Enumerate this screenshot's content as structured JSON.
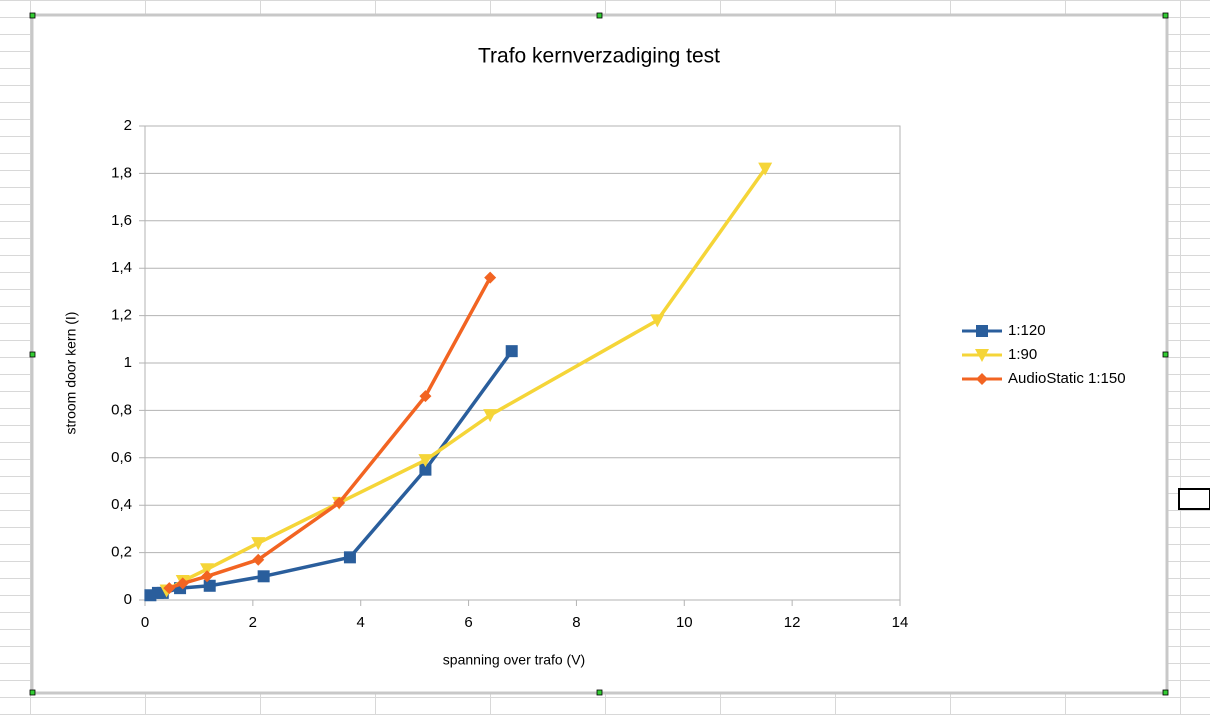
{
  "chart_data": {
    "type": "line",
    "title": "Trafo kernverzadiging test",
    "x_label": "spanning over trafo (V)",
    "y_label": "stroom door kern (I)",
    "xlim": [
      0,
      14
    ],
    "xticks": [
      0,
      2,
      4,
      6,
      8,
      10,
      12,
      14
    ],
    "ylim": [
      0,
      2
    ],
    "yticks": [
      0,
      {
        "value": 0.2,
        "label": "0,2"
      },
      {
        "value": 0.4,
        "label": "0,4"
      },
      {
        "value": 0.6,
        "label": "0,6"
      },
      {
        "value": 0.8,
        "label": "0,8"
      },
      1,
      {
        "value": 1.2,
        "label": "1,2"
      },
      {
        "value": 1.4,
        "label": "1,4"
      },
      {
        "value": 1.6,
        "label": "1,6"
      },
      {
        "value": 1.8,
        "label": "1,8"
      },
      2
    ],
    "grid": true,
    "legend": "right",
    "series": [
      {
        "name": "1:120",
        "color": "#2a5e9c",
        "marker": "square",
        "x": [
          0.1,
          0.24,
          0.33,
          0.65,
          1.2,
          2.2,
          3.8,
          5.2,
          6.8
        ],
        "values": [
          0.02,
          0.03,
          0.03,
          0.05,
          0.06,
          0.1,
          0.18,
          0.55,
          1.05
        ]
      },
      {
        "name": "1:90",
        "color": "#f5d538",
        "marker": "triangle",
        "x": [
          0.4,
          0.7,
          1.15,
          2.1,
          3.6,
          5.2,
          6.4,
          9.5,
          11.5
        ],
        "values": [
          0.04,
          0.08,
          0.13,
          0.24,
          0.41,
          0.59,
          0.78,
          1.18,
          1.82
        ]
      },
      {
        "name": "AudioStatic 1:150",
        "color": "#f26422",
        "marker": "diamond",
        "x": [
          0.45,
          0.7,
          1.15,
          2.1,
          3.6,
          5.2,
          6.4
        ],
        "values": [
          0.05,
          0.07,
          0.1,
          0.17,
          0.41,
          0.86,
          1.36
        ]
      }
    ]
  }
}
